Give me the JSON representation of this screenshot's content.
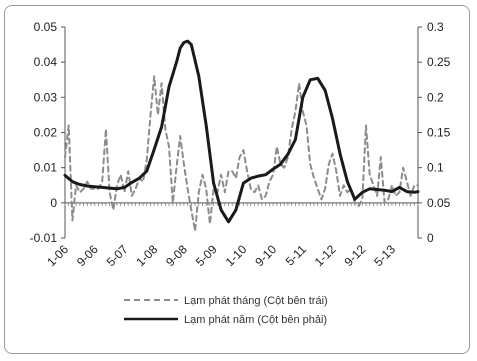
{
  "chart_data": {
    "type": "line",
    "title": "",
    "x_tick_labels": [
      "1-06",
      "9-06",
      "5-07",
      "1-08",
      "9-08",
      "5-09",
      "1-10",
      "9-10",
      "5-11",
      "1-12",
      "9-12",
      "5-13"
    ],
    "x_tick_months": [
      0,
      8,
      16,
      24,
      32,
      40,
      48,
      56,
      64,
      72,
      80,
      88
    ],
    "x_months_total": 95,
    "y_left": {
      "min": -0.01,
      "max": 0.05,
      "ticks": [
        "-0.01",
        "0",
        "0.01",
        "0.02",
        "0.03",
        "0.04",
        "0.05"
      ]
    },
    "y_right": {
      "min": 0,
      "max": 0.3,
      "ticks": [
        "0",
        "0.05",
        "0.1",
        "0.15",
        "0.2",
        "0.25",
        "0.3"
      ]
    },
    "series": [
      {
        "name": "Lạm phát tháng (Cột bên trái)",
        "axis": "left",
        "style": "dashed",
        "color": "#8c8c8c",
        "months": [
          0,
          1,
          2,
          3,
          4,
          5,
          6,
          7,
          8,
          9,
          10,
          11,
          12,
          13,
          14,
          15,
          16,
          17,
          18,
          19,
          20,
          21,
          22,
          23,
          24,
          25,
          26,
          27,
          28,
          29,
          30,
          31,
          32,
          33,
          34,
          35,
          36,
          37,
          38,
          39,
          40,
          41,
          42,
          43,
          44,
          45,
          46,
          47,
          48,
          49,
          50,
          51,
          52,
          53,
          54,
          55,
          56,
          57,
          58,
          59,
          60,
          61,
          62,
          63,
          64,
          65,
          66,
          67,
          68,
          69,
          70,
          71,
          72,
          73,
          74,
          75,
          76,
          77,
          78,
          79,
          80,
          81,
          82,
          83,
          84,
          85,
          86,
          87,
          88,
          89,
          90,
          91,
          92,
          93,
          94,
          95
        ],
        "values": [
          0.013,
          0.022,
          -0.005,
          0.005,
          0.003,
          0.004,
          0.006,
          0.004,
          0.004,
          0.004,
          0.006,
          0.021,
          0.003,
          -0.002,
          0.005,
          0.008,
          0.003,
          0.009,
          0.002,
          0.004,
          0.007,
          0.006,
          0.012,
          0.025,
          0.036,
          0.025,
          0.034,
          0.021,
          0.016,
          0.0,
          0.01,
          0.019,
          0.011,
          0.004,
          -0.002,
          -0.008,
          0.003,
          0.008,
          0.004,
          -0.006,
          0.004,
          0.003,
          0.008,
          0.003,
          0.009,
          0.009,
          0.007,
          0.013,
          0.015,
          0.009,
          0.004,
          0.003,
          0.005,
          0.001,
          0.002,
          0.006,
          0.008,
          0.016,
          0.011,
          0.01,
          0.013,
          0.021,
          0.026,
          0.034,
          0.026,
          0.022,
          0.011,
          0.007,
          0.004,
          0.001,
          0.004,
          0.011,
          0.014,
          0.009,
          0.002,
          0.005,
          0.003,
          0.004,
          0.0,
          -0.001,
          0.001,
          0.022,
          0.008,
          0.005,
          0.002,
          0.013,
          0.0,
          0.001,
          0.005,
          0.002,
          0.003,
          0.01,
          0.006,
          0.002,
          0.005,
          0.005
        ]
      },
      {
        "name": "Lạm phát năm (Cột bên phải)",
        "axis": "right",
        "style": "solid",
        "color": "#1a1a1a",
        "months": [
          0,
          2,
          4,
          6,
          8,
          10,
          12,
          14,
          16,
          18,
          20,
          22,
          24,
          26,
          28,
          30,
          31,
          32,
          33,
          34,
          36,
          38,
          40,
          42,
          44,
          46,
          48,
          50,
          52,
          54,
          56,
          58,
          60,
          62,
          64,
          66,
          68,
          70,
          72,
          74,
          76,
          78,
          80,
          82,
          84,
          86,
          88,
          90,
          92,
          94,
          95
        ],
        "values": [
          0.089,
          0.08,
          0.076,
          0.074,
          0.073,
          0.072,
          0.071,
          0.07,
          0.072,
          0.079,
          0.085,
          0.095,
          0.126,
          0.158,
          0.215,
          0.25,
          0.27,
          0.278,
          0.28,
          0.275,
          0.23,
          0.16,
          0.078,
          0.04,
          0.023,
          0.04,
          0.078,
          0.085,
          0.088,
          0.09,
          0.098,
          0.105,
          0.119,
          0.14,
          0.2,
          0.225,
          0.227,
          0.21,
          0.17,
          0.12,
          0.08,
          0.055,
          0.065,
          0.07,
          0.069,
          0.068,
          0.066,
          0.072,
          0.066,
          0.065,
          0.066
        ]
      }
    ],
    "legend_position": "bottom"
  }
}
